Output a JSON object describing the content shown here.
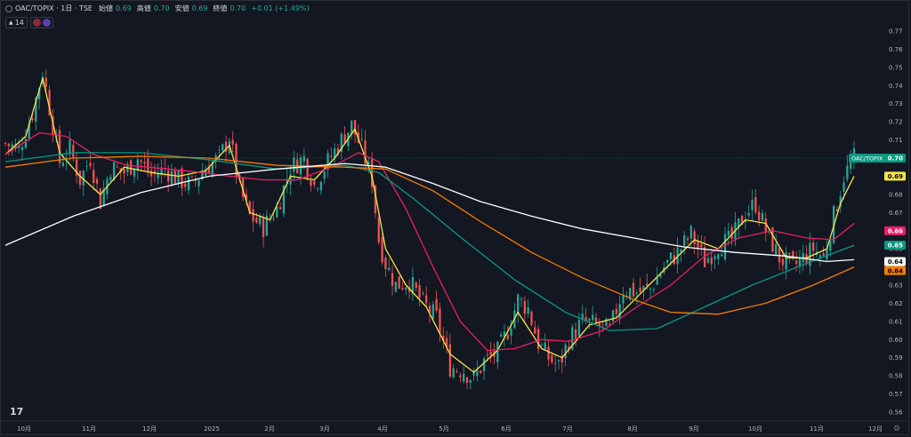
{
  "header": {
    "symbol": "OAC/TOPIX · 1日 · TSE",
    "open_label": "始値",
    "open_value": "0.69",
    "high_label": "高値",
    "high_value": "0.70",
    "low_label": "安値",
    "low_value": "0.69",
    "close_label": "終値",
    "close_value": "0.70",
    "change": "+0.01 (+1.49%)"
  },
  "indicator_bar": {
    "count": "14"
  },
  "logo_text": "17",
  "colors": {
    "background": "#131722",
    "up": "#26a69a",
    "down": "#ef5350",
    "ma_yellow": "#f5e447",
    "ma_pink": "#e91e63",
    "ma_green": "#089981",
    "ma_orange": "#f57c00",
    "ma_white": "#ffffff"
  },
  "chart_data": {
    "type": "line",
    "title": "OAC/TOPIX",
    "x_tick_labels": [
      "10月",
      "11月",
      "12月",
      "2025",
      "2月",
      "3月",
      "4月",
      "5月",
      "6月",
      "7月",
      "8月",
      "9月",
      "10月",
      "11月",
      "12月"
    ],
    "y_tick_labels": [
      "0.77",
      "0.76",
      "0.75",
      "0.74",
      "0.73",
      "0.72",
      "0.71",
      "0.70",
      "0.69",
      "0.68",
      "0.67",
      "0.66",
      "0.65",
      "0.64",
      "0.63",
      "0.62",
      "0.61",
      "0.60",
      "0.59",
      "0.58",
      "0.57",
      "0.56"
    ],
    "ylim": [
      0.555,
      0.782
    ],
    "grid": false,
    "price_labels": [
      {
        "text": "OAC/TOPIX",
        "value": "0.70",
        "y": 0.7,
        "color": "#089981",
        "text_color": "#ffffff"
      },
      {
        "text": "",
        "value": "0.69",
        "y": 0.69,
        "color": "#f5e447",
        "text_color": "#000000"
      },
      {
        "text": "",
        "value": "0.66",
        "y": 0.66,
        "color": "#e91e63",
        "text_color": "#ffffff"
      },
      {
        "text": "",
        "value": "0.65",
        "y": 0.652,
        "color": "#089981",
        "text_color": "#ffffff"
      },
      {
        "text": "",
        "value": "0.64",
        "y": 0.643,
        "color": "#ffffff",
        "text_color": "#000000"
      },
      {
        "text": "",
        "value": "0.64",
        "y": 0.638,
        "color": "#f57c00",
        "text_color": "#000000"
      }
    ],
    "anchors": [
      {
        "t": 0,
        "v": 0.708
      },
      {
        "t": 4,
        "v": 0.705
      },
      {
        "t": 8,
        "v": 0.725
      },
      {
        "t": 11,
        "v": 0.748
      },
      {
        "t": 14,
        "v": 0.718
      },
      {
        "t": 16,
        "v": 0.698
      },
      {
        "t": 19,
        "v": 0.705
      },
      {
        "t": 22,
        "v": 0.688
      },
      {
        "t": 25,
        "v": 0.7
      },
      {
        "t": 28,
        "v": 0.676
      },
      {
        "t": 31,
        "v": 0.695
      },
      {
        "t": 35,
        "v": 0.692
      },
      {
        "t": 39,
        "v": 0.7
      },
      {
        "t": 43,
        "v": 0.69
      },
      {
        "t": 47,
        "v": 0.694
      },
      {
        "t": 51,
        "v": 0.688
      },
      {
        "t": 55,
        "v": 0.685
      },
      {
        "t": 59,
        "v": 0.695
      },
      {
        "t": 63,
        "v": 0.7
      },
      {
        "t": 66,
        "v": 0.712
      },
      {
        "t": 69,
        "v": 0.683
      },
      {
        "t": 72,
        "v": 0.668
      },
      {
        "t": 76,
        "v": 0.662
      },
      {
        "t": 80,
        "v": 0.672
      },
      {
        "t": 84,
        "v": 0.695
      },
      {
        "t": 88,
        "v": 0.7
      },
      {
        "t": 91,
        "v": 0.685
      },
      {
        "t": 95,
        "v": 0.698
      },
      {
        "t": 99,
        "v": 0.71
      },
      {
        "t": 102,
        "v": 0.718
      },
      {
        "t": 105,
        "v": 0.705
      },
      {
        "t": 108,
        "v": 0.688
      },
      {
        "t": 110,
        "v": 0.655
      },
      {
        "t": 112,
        "v": 0.642
      },
      {
        "t": 115,
        "v": 0.63
      },
      {
        "t": 119,
        "v": 0.632
      },
      {
        "t": 123,
        "v": 0.62
      },
      {
        "t": 127,
        "v": 0.612
      },
      {
        "t": 131,
        "v": 0.585
      },
      {
        "t": 135,
        "v": 0.583
      },
      {
        "t": 138,
        "v": 0.578
      },
      {
        "t": 141,
        "v": 0.588
      },
      {
        "t": 145,
        "v": 0.593
      },
      {
        "t": 148,
        "v": 0.605
      },
      {
        "t": 151,
        "v": 0.622
      },
      {
        "t": 154,
        "v": 0.617
      },
      {
        "t": 157,
        "v": 0.598
      },
      {
        "t": 160,
        "v": 0.59
      },
      {
        "t": 163,
        "v": 0.585
      },
      {
        "t": 166,
        "v": 0.6
      },
      {
        "t": 170,
        "v": 0.61
      },
      {
        "t": 174,
        "v": 0.608
      },
      {
        "t": 178,
        "v": 0.605
      },
      {
        "t": 182,
        "v": 0.628
      },
      {
        "t": 186,
        "v": 0.626
      },
      {
        "t": 190,
        "v": 0.628
      },
      {
        "t": 194,
        "v": 0.64
      },
      {
        "t": 198,
        "v": 0.648
      },
      {
        "t": 202,
        "v": 0.658
      },
      {
        "t": 206,
        "v": 0.643
      },
      {
        "t": 210,
        "v": 0.652
      },
      {
        "t": 214,
        "v": 0.655
      },
      {
        "t": 218,
        "v": 0.67
      },
      {
        "t": 221,
        "v": 0.675
      },
      {
        "t": 224,
        "v": 0.66
      },
      {
        "t": 228,
        "v": 0.645
      },
      {
        "t": 232,
        "v": 0.64
      },
      {
        "t": 235,
        "v": 0.645
      },
      {
        "t": 238,
        "v": 0.65
      },
      {
        "t": 241,
        "v": 0.645
      },
      {
        "t": 244,
        "v": 0.668
      },
      {
        "t": 247,
        "v": 0.69
      },
      {
        "t": 250,
        "v": 0.7
      }
    ],
    "series": [
      {
        "type": "ma",
        "color": "#f5e447",
        "window": 5,
        "points": [
          {
            "t": 0,
            "v": 0.702
          },
          {
            "t": 6,
            "v": 0.712
          },
          {
            "t": 11,
            "v": 0.744
          },
          {
            "t": 16,
            "v": 0.703
          },
          {
            "t": 22,
            "v": 0.69
          },
          {
            "t": 28,
            "v": 0.68
          },
          {
            "t": 35,
            "v": 0.695
          },
          {
            "t": 43,
            "v": 0.692
          },
          {
            "t": 51,
            "v": 0.69
          },
          {
            "t": 59,
            "v": 0.693
          },
          {
            "t": 66,
            "v": 0.707
          },
          {
            "t": 72,
            "v": 0.67
          },
          {
            "t": 78,
            "v": 0.666
          },
          {
            "t": 84,
            "v": 0.69
          },
          {
            "t": 91,
            "v": 0.688
          },
          {
            "t": 97,
            "v": 0.7
          },
          {
            "t": 103,
            "v": 0.716
          },
          {
            "t": 108,
            "v": 0.69
          },
          {
            "t": 112,
            "v": 0.65
          },
          {
            "t": 118,
            "v": 0.63
          },
          {
            "t": 124,
            "v": 0.618
          },
          {
            "t": 131,
            "v": 0.592
          },
          {
            "t": 138,
            "v": 0.582
          },
          {
            "t": 145,
            "v": 0.594
          },
          {
            "t": 151,
            "v": 0.615
          },
          {
            "t": 158,
            "v": 0.595
          },
          {
            "t": 164,
            "v": 0.59
          },
          {
            "t": 172,
            "v": 0.608
          },
          {
            "t": 180,
            "v": 0.612
          },
          {
            "t": 188,
            "v": 0.627
          },
          {
            "t": 196,
            "v": 0.642
          },
          {
            "t": 203,
            "v": 0.655
          },
          {
            "t": 210,
            "v": 0.65
          },
          {
            "t": 218,
            "v": 0.666
          },
          {
            "t": 224,
            "v": 0.664
          },
          {
            "t": 230,
            "v": 0.645
          },
          {
            "t": 236,
            "v": 0.645
          },
          {
            "t": 242,
            "v": 0.65
          },
          {
            "t": 246,
            "v": 0.675
          },
          {
            "t": 250,
            "v": 0.69
          }
        ]
      },
      {
        "type": "ma",
        "color": "#e91e63",
        "window": 25,
        "points": [
          {
            "t": 0,
            "v": 0.702
          },
          {
            "t": 10,
            "v": 0.714
          },
          {
            "t": 18,
            "v": 0.712
          },
          {
            "t": 26,
            "v": 0.702
          },
          {
            "t": 36,
            "v": 0.696
          },
          {
            "t": 48,
            "v": 0.694
          },
          {
            "t": 58,
            "v": 0.692
          },
          {
            "t": 66,
            "v": 0.69
          },
          {
            "t": 76,
            "v": 0.688
          },
          {
            "t": 86,
            "v": 0.688
          },
          {
            "t": 96,
            "v": 0.695
          },
          {
            "t": 104,
            "v": 0.703
          },
          {
            "t": 110,
            "v": 0.698
          },
          {
            "t": 118,
            "v": 0.672
          },
          {
            "t": 126,
            "v": 0.64
          },
          {
            "t": 134,
            "v": 0.61
          },
          {
            "t": 142,
            "v": 0.594
          },
          {
            "t": 150,
            "v": 0.595
          },
          {
            "t": 158,
            "v": 0.6
          },
          {
            "t": 166,
            "v": 0.599
          },
          {
            "t": 176,
            "v": 0.605
          },
          {
            "t": 186,
            "v": 0.618
          },
          {
            "t": 196,
            "v": 0.63
          },
          {
            "t": 206,
            "v": 0.646
          },
          {
            "t": 216,
            "v": 0.656
          },
          {
            "t": 226,
            "v": 0.66
          },
          {
            "t": 236,
            "v": 0.656
          },
          {
            "t": 244,
            "v": 0.655
          },
          {
            "t": 250,
            "v": 0.664
          }
        ]
      },
      {
        "type": "ma",
        "color": "#089981",
        "window": 75,
        "points": [
          {
            "t": 0,
            "v": 0.698
          },
          {
            "t": 20,
            "v": 0.703
          },
          {
            "t": 40,
            "v": 0.703
          },
          {
            "t": 60,
            "v": 0.699
          },
          {
            "t": 80,
            "v": 0.694
          },
          {
            "t": 100,
            "v": 0.696
          },
          {
            "t": 110,
            "v": 0.692
          },
          {
            "t": 120,
            "v": 0.678
          },
          {
            "t": 135,
            "v": 0.655
          },
          {
            "t": 150,
            "v": 0.633
          },
          {
            "t": 165,
            "v": 0.615
          },
          {
            "t": 178,
            "v": 0.605
          },
          {
            "t": 192,
            "v": 0.606
          },
          {
            "t": 206,
            "v": 0.618
          },
          {
            "t": 220,
            "v": 0.63
          },
          {
            "t": 236,
            "v": 0.642
          },
          {
            "t": 250,
            "v": 0.652
          }
        ]
      },
      {
        "type": "ma",
        "color": "#f57c00",
        "window": 100,
        "points": [
          {
            "t": 0,
            "v": 0.695
          },
          {
            "t": 20,
            "v": 0.7
          },
          {
            "t": 40,
            "v": 0.701
          },
          {
            "t": 60,
            "v": 0.7
          },
          {
            "t": 80,
            "v": 0.696
          },
          {
            "t": 100,
            "v": 0.695
          },
          {
            "t": 112,
            "v": 0.694
          },
          {
            "t": 126,
            "v": 0.682
          },
          {
            "t": 140,
            "v": 0.665
          },
          {
            "t": 155,
            "v": 0.648
          },
          {
            "t": 170,
            "v": 0.634
          },
          {
            "t": 185,
            "v": 0.622
          },
          {
            "t": 196,
            "v": 0.615
          },
          {
            "t": 210,
            "v": 0.614
          },
          {
            "t": 224,
            "v": 0.62
          },
          {
            "t": 238,
            "v": 0.63
          },
          {
            "t": 250,
            "v": 0.64
          }
        ]
      },
      {
        "type": "ma",
        "color": "#ffffff",
        "window": 200,
        "points": [
          {
            "t": 0,
            "v": 0.652
          },
          {
            "t": 20,
            "v": 0.668
          },
          {
            "t": 40,
            "v": 0.681
          },
          {
            "t": 60,
            "v": 0.69
          },
          {
            "t": 80,
            "v": 0.694
          },
          {
            "t": 100,
            "v": 0.697
          },
          {
            "t": 112,
            "v": 0.695
          },
          {
            "t": 126,
            "v": 0.686
          },
          {
            "t": 140,
            "v": 0.676
          },
          {
            "t": 155,
            "v": 0.668
          },
          {
            "t": 170,
            "v": 0.661
          },
          {
            "t": 185,
            "v": 0.656
          },
          {
            "t": 200,
            "v": 0.651
          },
          {
            "t": 215,
            "v": 0.648
          },
          {
            "t": 230,
            "v": 0.646
          },
          {
            "t": 242,
            "v": 0.643
          },
          {
            "t": 250,
            "v": 0.644
          }
        ]
      }
    ]
  }
}
